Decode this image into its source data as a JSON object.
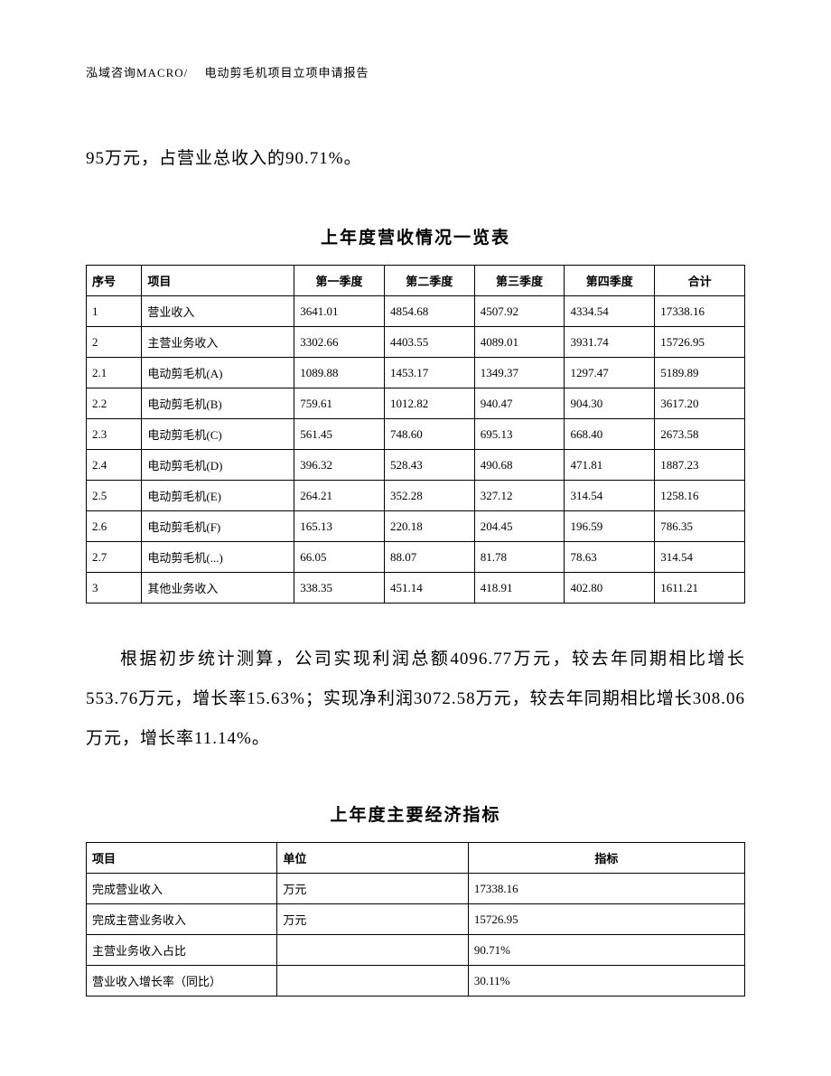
{
  "header": "泓域咨询MACRO/　 电动剪毛机项目立项申请报告",
  "continuationText": "95万元，占营业总收入的90.71%。",
  "table1": {
    "title": "上年度营收情况一览表",
    "columns": [
      "序号",
      "项目",
      "第一季度",
      "第二季度",
      "第三季度",
      "第四季度",
      "合计"
    ],
    "rows": [
      [
        "1",
        "营业收入",
        "3641.01",
        "4854.68",
        "4507.92",
        "4334.54",
        "17338.16"
      ],
      [
        "2",
        "主营业务收入",
        "3302.66",
        "4403.55",
        "4089.01",
        "3931.74",
        "15726.95"
      ],
      [
        "2.1",
        "电动剪毛机(A)",
        "1089.88",
        "1453.17",
        "1349.37",
        "1297.47",
        "5189.89"
      ],
      [
        "2.2",
        "电动剪毛机(B)",
        "759.61",
        "1012.82",
        "940.47",
        "904.30",
        "3617.20"
      ],
      [
        "2.3",
        "电动剪毛机(C)",
        "561.45",
        "748.60",
        "695.13",
        "668.40",
        "2673.58"
      ],
      [
        "2.4",
        "电动剪毛机(D)",
        "396.32",
        "528.43",
        "490.68",
        "471.81",
        "1887.23"
      ],
      [
        "2.5",
        "电动剪毛机(E)",
        "264.21",
        "352.28",
        "327.12",
        "314.54",
        "1258.16"
      ],
      [
        "2.6",
        "电动剪毛机(F)",
        "165.13",
        "220.18",
        "204.45",
        "196.59",
        "786.35"
      ],
      [
        "2.7",
        "电动剪毛机(...)",
        "66.05",
        "88.07",
        "81.78",
        "78.63",
        "314.54"
      ],
      [
        "3",
        "其他业务收入",
        "338.35",
        "451.14",
        "418.91",
        "402.80",
        "1611.21"
      ]
    ]
  },
  "paragraph": "根据初步统计测算，公司实现利润总额4096.77万元，较去年同期相比增长553.76万元，增长率15.63%；实现净利润3072.58万元，较去年同期相比增长308.06万元，增长率11.14%。",
  "table2": {
    "title": "上年度主要经济指标",
    "columns": [
      "项目",
      "单位",
      "指标"
    ],
    "rows": [
      [
        "完成营业收入",
        "万元",
        "17338.16"
      ],
      [
        "完成主营业务收入",
        "万元",
        "15726.95"
      ],
      [
        "主营业务收入占比",
        "",
        "90.71%"
      ],
      [
        "营业收入增长率（同比）",
        "",
        "30.11%"
      ]
    ]
  }
}
